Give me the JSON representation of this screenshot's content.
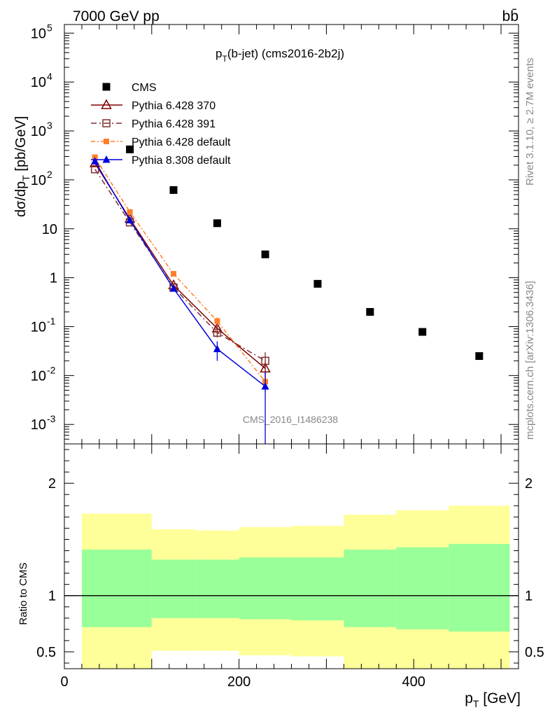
{
  "header": {
    "energy_label": "7000 GeV pp",
    "process_label": "bb̄",
    "side_rivet": "Rivet 3.1.10, ≥ 2.7M events",
    "side_mcplots": "mcplots.cern.ch [arXiv:1306.3436]",
    "watermark": "CMS_2016_I1486238"
  },
  "colors": {
    "cms": "#000000",
    "p6_370": "#7f0000",
    "p6_391": "#7f2f2f",
    "p6_default": "#ff7f2a",
    "p8_default": "#0000dd",
    "band_inner": "#99ff99",
    "band_outer": "#ffff99"
  },
  "chart_data": [
    {
      "type": "scatter",
      "panel": "main",
      "title": "p_T(b-jet) (cms2016-2b2j)",
      "title_main": "p",
      "title_sub": "T",
      "title_rest": "(b-jet) (cms2016-2b2j)",
      "ylabel": "dσ/dp_T [pb/GeV]",
      "ylabel_parts": [
        "dσ/dp",
        "T",
        " [pb/GeV]"
      ],
      "yscale": "log",
      "xlim": [
        0,
        520
      ],
      "ylim": [
        0.0004,
        150000
      ],
      "y_ticks": [
        {
          "value": 0.001,
          "label": "10",
          "exp": "-3"
        },
        {
          "value": 0.01,
          "label": "10",
          "exp": "-2"
        },
        {
          "value": 0.1,
          "label": "10",
          "exp": "-1"
        },
        {
          "value": 1,
          "label": "1",
          "exp": ""
        },
        {
          "value": 10,
          "label": "10",
          "exp": ""
        },
        {
          "value": 100,
          "label": "10",
          "exp": "2"
        },
        {
          "value": 1000,
          "label": "10",
          "exp": "3"
        },
        {
          "value": 10000,
          "label": "10",
          "exp": "4"
        },
        {
          "value": 100000,
          "label": "10",
          "exp": "5"
        }
      ],
      "legend_position": "top-left",
      "series": [
        {
          "name": "CMS",
          "key": "cms",
          "marker": "square",
          "x": [
            75,
            125,
            175,
            230,
            290,
            350,
            410,
            475
          ],
          "y": [
            420,
            62,
            13,
            3.0,
            0.75,
            0.2,
            0.078,
            0.025
          ]
        },
        {
          "name": "Pythia 6.428 370",
          "key": "p6_370",
          "marker": "open-triangle",
          "dash": "",
          "x": [
            35,
            75,
            125,
            175,
            230
          ],
          "y": [
            220,
            16,
            0.7,
            0.092,
            0.014
          ],
          "yerr": [
            0,
            0,
            0.08,
            0.02,
            0.006
          ]
        },
        {
          "name": "Pythia 6.428 391",
          "key": "p6_391",
          "marker": "open-square",
          "dash": "8,4,2,4",
          "x": [
            35,
            75,
            125,
            175,
            230
          ],
          "y": [
            165,
            13.5,
            0.63,
            0.075,
            0.02
          ],
          "yerr": [
            0,
            0,
            0.07,
            0.015,
            0.01
          ]
        },
        {
          "name": "Pythia 6.428 default",
          "key": "p6_default",
          "marker": "filled-square-small",
          "dash": "6,3,2,3",
          "x": [
            35,
            75,
            125,
            175,
            230
          ],
          "y": [
            290,
            22,
            1.2,
            0.13,
            0.0075
          ],
          "yerr": [
            0,
            0,
            0.1,
            0.025,
            0.003
          ]
        },
        {
          "name": "Pythia 8.308 default",
          "key": "p8_default",
          "marker": "filled-triangle",
          "dash": "",
          "x": [
            35,
            75,
            125,
            175,
            230
          ],
          "y": [
            240,
            15,
            0.6,
            0.035,
            0.006
          ],
          "yerr": [
            0,
            0,
            0.08,
            0.015,
            0.0058
          ]
        }
      ]
    },
    {
      "type": "area",
      "panel": "ratio",
      "ylabel": "Ratio to CMS",
      "xlabel": "p_T [GeV]",
      "xlabel_parts": [
        "p",
        "T",
        " [GeV]"
      ],
      "xlim": [
        0,
        520
      ],
      "ylim": [
        0.35,
        2.35
      ],
      "x_ticks": [
        {
          "value": 0,
          "label": "0"
        },
        {
          "value": 200,
          "label": "200"
        },
        {
          "value": 400,
          "label": "400"
        }
      ],
      "y_ticks": [
        {
          "value": 0.5,
          "label": "0.5"
        },
        {
          "value": 1,
          "label": "1"
        },
        {
          "value": 2,
          "label": "2"
        }
      ],
      "bins": [
        {
          "x0": 20,
          "x1": 100,
          "inner_lo": 0.72,
          "inner_hi": 1.41,
          "outer_lo": 0.35,
          "outer_hi": 1.73
        },
        {
          "x0": 100,
          "x1": 150,
          "inner_lo": 0.8,
          "inner_hi": 1.32,
          "outer_lo": 0.51,
          "outer_hi": 1.59
        },
        {
          "x0": 150,
          "x1": 200,
          "inner_lo": 0.8,
          "inner_hi": 1.32,
          "outer_lo": 0.51,
          "outer_hi": 1.58
        },
        {
          "x0": 200,
          "x1": 260,
          "inner_lo": 0.79,
          "inner_hi": 1.34,
          "outer_lo": 0.47,
          "outer_hi": 1.61
        },
        {
          "x0": 260,
          "x1": 320,
          "inner_lo": 0.78,
          "inner_hi": 1.34,
          "outer_lo": 0.46,
          "outer_hi": 1.62
        },
        {
          "x0": 320,
          "x1": 380,
          "inner_lo": 0.72,
          "inner_hi": 1.41,
          "outer_lo": 0.35,
          "outer_hi": 1.72
        },
        {
          "x0": 380,
          "x1": 440,
          "inner_lo": 0.7,
          "inner_hi": 1.43,
          "outer_lo": 0.35,
          "outer_hi": 1.76
        },
        {
          "x0": 440,
          "x1": 510,
          "inner_lo": 0.68,
          "inner_hi": 1.46,
          "outer_lo": 0.35,
          "outer_hi": 1.8
        }
      ]
    }
  ]
}
